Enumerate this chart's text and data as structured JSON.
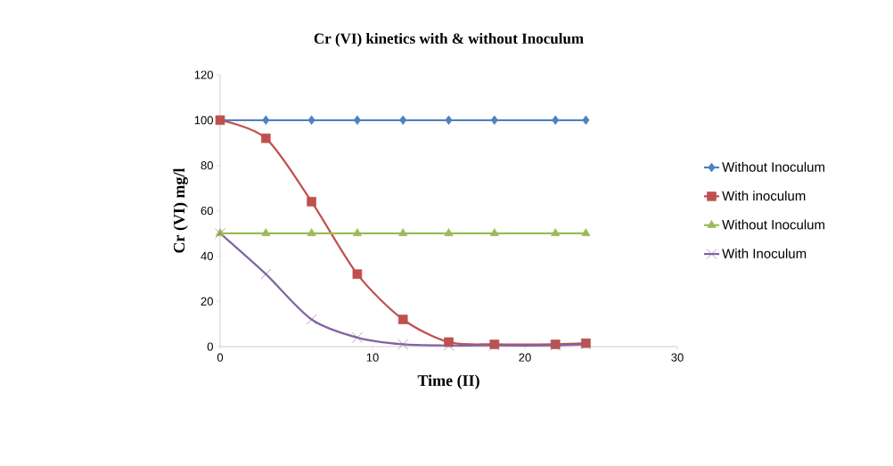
{
  "chart_data": {
    "type": "line",
    "title": "Cr (VI) kinetics with & without Inoculum",
    "xlabel": "Time (II)",
    "ylabel": "Cr (VI) mg/l",
    "x": [
      0,
      3,
      6,
      9,
      12,
      15,
      18,
      22,
      24
    ],
    "series": [
      {
        "name": "Without Inoculum",
        "color": "#4f81bd",
        "marker": "diamond",
        "values": [
          100,
          100,
          100,
          100,
          100,
          100,
          100,
          100,
          100
        ]
      },
      {
        "name": "With inoculum",
        "color": "#c0504d",
        "marker": "square",
        "values": [
          100,
          92,
          64,
          32,
          12,
          2,
          1,
          1,
          1.5
        ]
      },
      {
        "name": "Without Inoculum",
        "color": "#9bbb59",
        "marker": "triangle",
        "values": [
          50,
          50,
          50,
          50,
          50,
          50,
          50,
          50,
          50
        ]
      },
      {
        "name": "With Inoculum",
        "color": "#8064a2",
        "marker": "cross",
        "values": [
          50,
          32,
          12,
          4,
          1,
          0.5,
          0.5,
          0.5,
          1
        ]
      }
    ],
    "xlim": [
      0,
      30
    ],
    "xticks": [
      0,
      10,
      20,
      30
    ],
    "ylim": [
      0,
      120
    ],
    "yticks": [
      0,
      20,
      40,
      60,
      80,
      100,
      120
    ],
    "grid": false,
    "legend": "right",
    "line_style": "solid"
  }
}
